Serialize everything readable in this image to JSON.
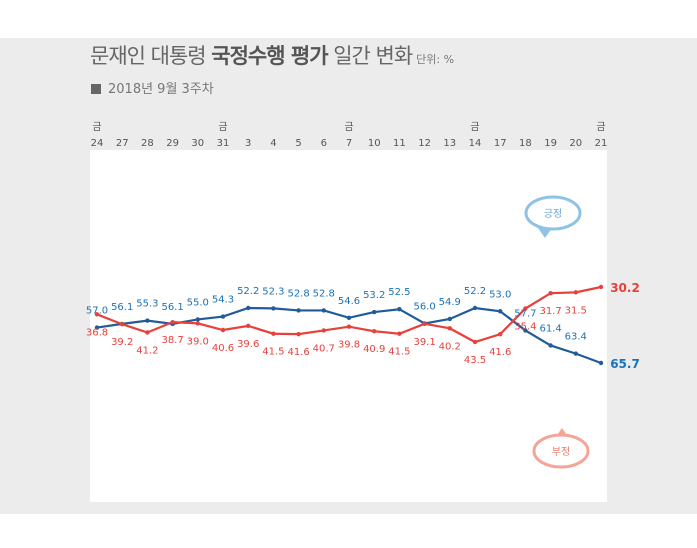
{
  "header": {
    "title_prefix": "문재인 대통령 ",
    "title_bold": "국정수행 평가",
    "title_suffix": " 일간 변화",
    "unit": "단위: %",
    "subtitle": "2018년 9월 3주차"
  },
  "colors": {
    "positive": "#1f5c99",
    "negative": "#e8413c",
    "positive_label": "#1a72b8",
    "bubble_positive": "#8ec3e6",
    "bubble_negative": "#f4a596"
  },
  "chart_data": {
    "type": "line",
    "x": [
      "24",
      "27",
      "28",
      "29",
      "30",
      "31",
      "3",
      "4",
      "5",
      "6",
      "7",
      "10",
      "11",
      "12",
      "13",
      "14",
      "17",
      "18",
      "19",
      "20",
      "21"
    ],
    "friday_marks": [
      "금",
      "",
      "",
      "",
      "",
      "금",
      "",
      "",
      "",
      "",
      "금",
      "",
      "",
      "",
      "",
      "금",
      "",
      "",
      "",
      "",
      "금"
    ],
    "series": [
      {
        "name": "긍정",
        "values": [
          57.0,
          56.1,
          55.3,
          56.1,
          55.0,
          54.3,
          52.2,
          52.3,
          52.8,
          52.8,
          54.6,
          53.2,
          52.5,
          56.0,
          54.9,
          52.2,
          53.0,
          57.7,
          61.4,
          63.4,
          65.7
        ]
      },
      {
        "name": "부정",
        "values": [
          36.8,
          39.2,
          41.2,
          38.7,
          39.0,
          40.6,
          39.6,
          41.5,
          41.6,
          40.7,
          39.8,
          40.9,
          41.5,
          39.1,
          40.2,
          43.5,
          41.6,
          35.4,
          31.7,
          31.5,
          30.2
        ]
      }
    ],
    "value_labels": {
      "positive": [
        "57.0",
        "56.1",
        "55.3",
        "56.1",
        "55.0",
        "54.3",
        "52.2",
        "52.3",
        "52.8",
        "52.8",
        "54.6",
        "53.2",
        "52.5",
        "56.0",
        "54.9",
        "52.2",
        "53.0",
        "57.7",
        "61.4",
        "63.4",
        "65.7"
      ],
      "negative": [
        "36.8",
        "39.2",
        "41.2",
        "38.7",
        "39.0",
        "40.6",
        "39.6",
        "41.5",
        "41.6",
        "40.7",
        "39.8",
        "40.9",
        "41.5",
        "39.1",
        "40.2",
        "43.5",
        "41.6",
        "35.4",
        "31.7",
        "31.5",
        "30.2"
      ]
    },
    "grid": false,
    "legend": "callouts near series ends"
  }
}
